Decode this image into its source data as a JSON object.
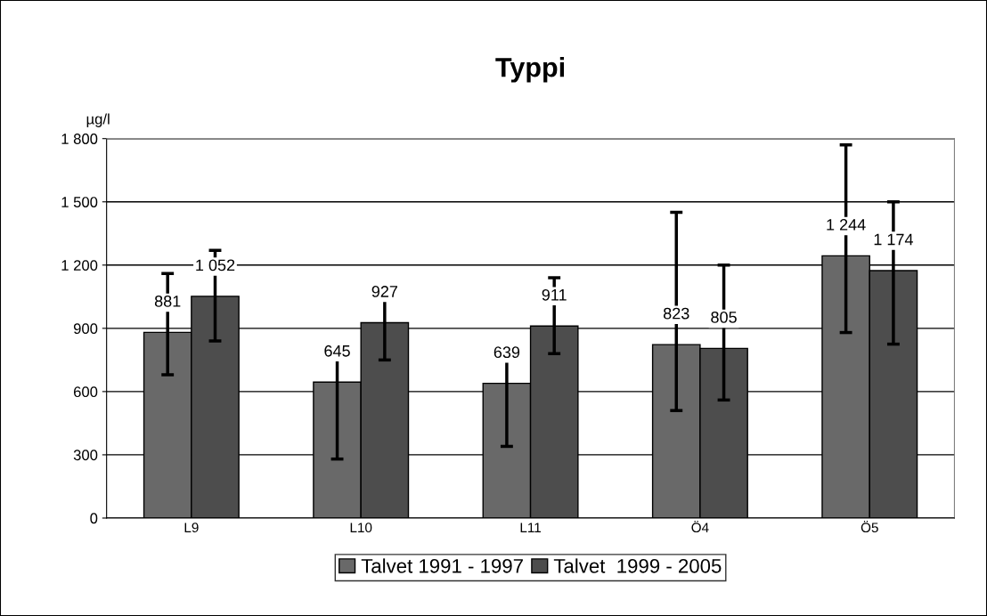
{
  "chart_data": {
    "type": "bar",
    "title": "Typpi",
    "ylabel": "µg/l",
    "categories": [
      "L9",
      "L10",
      "L11",
      "Ö4",
      "Ö5"
    ],
    "series": [
      {
        "name": "Talvet 1991 - 1997",
        "color": "#696969",
        "values": [
          881,
          645,
          639,
          823,
          1244
        ],
        "value_labels": [
          "881",
          "645",
          "639",
          "823",
          "1 244"
        ],
        "errors": [
          [
            680,
            1160
          ],
          [
            280,
            800
          ],
          [
            340,
            770
          ],
          [
            510,
            1450
          ],
          [
            880,
            1770
          ]
        ]
      },
      {
        "name": "Talvet  1999 - 2005",
        "color": "#4d4d4d",
        "values": [
          1052,
          927,
          911,
          805,
          1174
        ],
        "value_labels": [
          "1 052",
          "927",
          "911",
          "805",
          "1 174"
        ],
        "errors": [
          [
            840,
            1270
          ],
          [
            750,
            1100
          ],
          [
            780,
            1140
          ],
          [
            560,
            1200
          ],
          [
            825,
            1500
          ]
        ]
      }
    ],
    "ylim": [
      0,
      1800
    ],
    "yticks": [
      0,
      {
        "value": 300,
        "label": "300"
      },
      {
        "value": 600,
        "label": "600"
      },
      {
        "value": 900,
        "label": "900"
      },
      {
        "value": 1200,
        "label": "1 200"
      },
      {
        "value": 1500,
        "label": "1 500"
      },
      {
        "value": 1800,
        "label": "1 800"
      }
    ],
    "grid": "y",
    "legend": "bottom"
  }
}
